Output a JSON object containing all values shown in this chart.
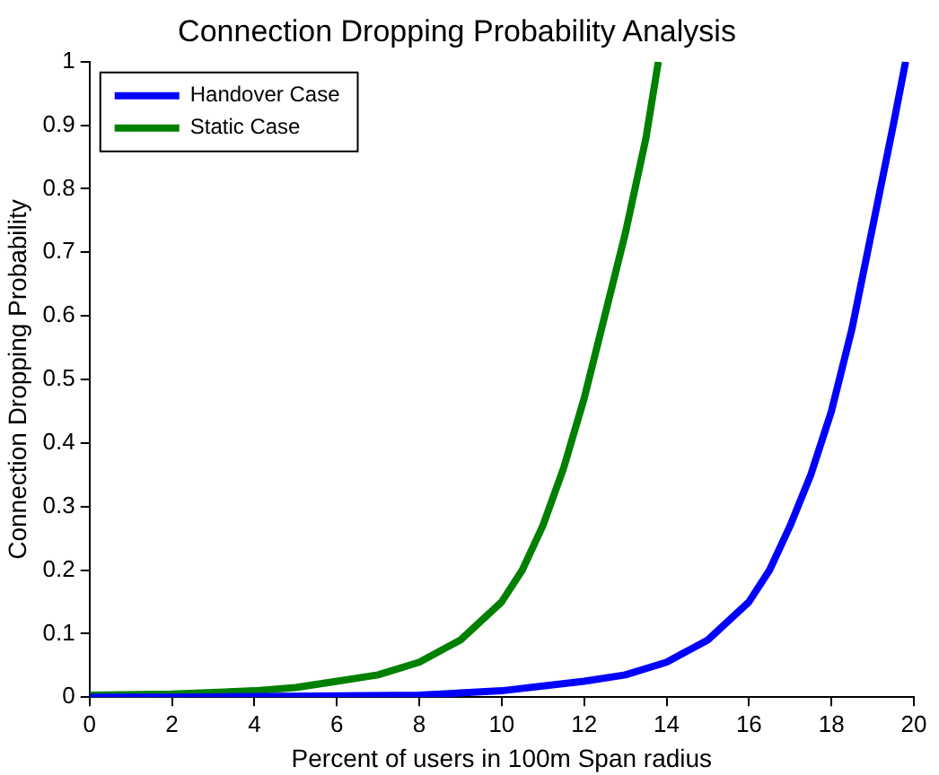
{
  "chart_data": {
    "type": "line",
    "title": "Connection Dropping Probability Analysis",
    "xlabel": "Percent of users in 100m Span radius",
    "ylabel": "Connection Dropping Probability",
    "xlim": [
      0,
      20
    ],
    "xticks": [
      0,
      2,
      4,
      6,
      8,
      10,
      12,
      14,
      16,
      18,
      20
    ],
    "ylim": [
      0,
      1
    ],
    "yticks": [
      0,
      0.1,
      0.2,
      0.3,
      0.4,
      0.5,
      0.6,
      0.7,
      0.8,
      0.9,
      1
    ],
    "grid": false,
    "legend": "top left",
    "marker": "none",
    "line_style": "solid",
    "series": [
      {
        "name": "Handover Case",
        "color": "#0000ff",
        "x": [
          0,
          2,
          4,
          6,
          8,
          10,
          12,
          13,
          14,
          15,
          16,
          16.5,
          17,
          17.5,
          18,
          18.5,
          19,
          19.5,
          19.8
        ],
        "values": [
          0,
          0,
          0.001,
          0.002,
          0.003,
          0.01,
          0.025,
          0.035,
          0.055,
          0.09,
          0.15,
          0.2,
          0.27,
          0.35,
          0.45,
          0.58,
          0.74,
          0.9,
          1
        ]
      },
      {
        "name": "Static Case",
        "color": "#008000",
        "x": [
          0,
          2,
          4,
          5,
          6,
          7,
          8,
          9,
          10,
          10.5,
          11,
          11.5,
          12,
          12.5,
          13,
          13.5,
          13.8
        ],
        "values": [
          0.003,
          0.005,
          0.01,
          0.015,
          0.025,
          0.035,
          0.055,
          0.09,
          0.15,
          0.2,
          0.27,
          0.36,
          0.47,
          0.6,
          0.73,
          0.88,
          1
        ]
      }
    ]
  }
}
